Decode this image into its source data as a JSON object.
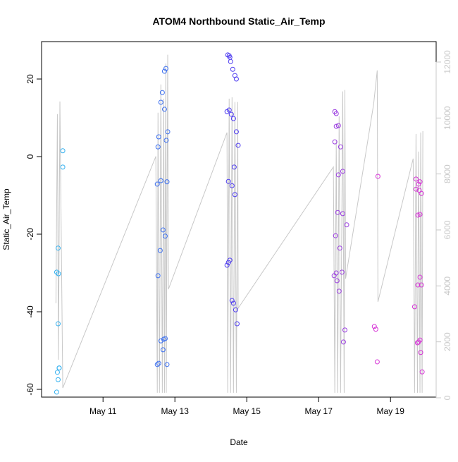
{
  "chart_data": {
    "type": "scatter",
    "title": "ATOM4 Northbound Static_Air_Temp",
    "xlabel": "Date",
    "ylabel": "Static_Air_Temp",
    "xlim": [
      9.29,
      20.27
    ],
    "ylim": [
      -62,
      29.64
    ],
    "y2lim": [
      25,
      12730
    ],
    "xticks": [
      {
        "value": 11,
        "label": "May 11"
      },
      {
        "value": 13,
        "label": "May 13"
      },
      {
        "value": 15,
        "label": "May 15"
      },
      {
        "value": 17,
        "label": "May 17"
      },
      {
        "value": 19,
        "label": "May 19"
      }
    ],
    "yticks": [
      -60,
      -40,
      -20,
      0,
      20
    ],
    "y2ticks": [
      0,
      2000,
      4000,
      6000,
      8000,
      10000,
      12000
    ],
    "series": [
      {
        "type": "line",
        "axis": "y2",
        "color": "#c8c8c8",
        "x": [
          9.69,
          9.73,
          9.76,
          9.8,
          9.88,
          12.47,
          12.51,
          12.53,
          12.57,
          12.61,
          12.65,
          12.69,
          12.71,
          12.75,
          12.76,
          12.8,
          12.82,
          14.45,
          14.47,
          14.51,
          14.55,
          14.59,
          14.63,
          14.67,
          14.71,
          14.75,
          14.76,
          17.41,
          17.45,
          17.49,
          17.53,
          17.57,
          17.61,
          17.67,
          17.71,
          17.73,
          17.75,
          18.53,
          18.63,
          18.65,
          19.63,
          19.67,
          19.71,
          19.75,
          19.78,
          19.82,
          19.84,
          19.88,
          19.9
        ],
        "values": [
          3380,
          10140,
          1360,
          10590,
          350,
          8630,
          180,
          10190,
          180,
          11200,
          180,
          10690,
          180,
          11950,
          180,
          12260,
          3880,
          9480,
          180,
          10690,
          180,
          10740,
          180,
          10570,
          180,
          10570,
          3200,
          8250,
          180,
          9180,
          180,
          10060,
          180,
          10950,
          180,
          11000,
          4260,
          10490,
          11700,
          3430,
          8550,
          180,
          9430,
          180,
          8800,
          180,
          9480,
          180,
          9530
        ]
      },
      {
        "color": "#33b0ef",
        "x": [
          9.71,
          9.75,
          9.78,
          9.73,
          9.78,
          9.75,
          9.71,
          9.76,
          9.75,
          9.88,
          9.88
        ],
        "values": [
          -60.7,
          -57.5,
          -54.5,
          -55.6,
          -54.5,
          -43.1,
          -29.8,
          -30.2,
          -23.6,
          -2.7,
          1.5
        ]
      },
      {
        "color": "#3b6ff0",
        "x": [
          12.51,
          12.55,
          12.61,
          12.69,
          12.67,
          12.73,
          12.78,
          12.53,
          12.59,
          12.67,
          12.73,
          12.51,
          12.61,
          12.78,
          12.53,
          12.55,
          12.8,
          12.76,
          12.61,
          12.65,
          12.71,
          12.71,
          12.75
        ],
        "values": [
          -53.6,
          -53.3,
          -47.5,
          -47.1,
          -49.8,
          -46.9,
          -53.6,
          -30.7,
          -24.2,
          -18.9,
          -20.5,
          -7.1,
          -6.2,
          -6.5,
          2.5,
          5.1,
          6.4,
          4.2,
          14.0,
          16.5,
          12.2,
          22.0,
          22.7
        ]
      },
      {
        "color": "#4e3cf0",
        "x": [
          14.47,
          14.51,
          14.53,
          14.55,
          14.61,
          14.67,
          14.71,
          14.45,
          14.51,
          14.57,
          14.63,
          14.71,
          14.76,
          14.49,
          14.59,
          14.67,
          14.65,
          14.45,
          14.49,
          14.53,
          14.59,
          14.63,
          14.69,
          14.73
        ],
        "values": [
          26.2,
          26.0,
          25.6,
          24.5,
          22.5,
          20.9,
          20.0,
          11.6,
          12.0,
          10.9,
          9.8,
          6.4,
          2.9,
          -6.4,
          -7.5,
          -9.8,
          -2.7,
          -28.0,
          -27.3,
          -26.7,
          -37.1,
          -37.8,
          -39.5,
          -43.1
        ]
      },
      {
        "color": "#9a3de0",
        "x": [
          17.45,
          17.49,
          17.49,
          17.55,
          17.45,
          17.61,
          17.55,
          17.67,
          17.53,
          17.67,
          17.47,
          17.59,
          17.78,
          17.43,
          17.49,
          17.65,
          17.51,
          17.57,
          17.73,
          17.69
        ],
        "values": [
          11.6,
          11.1,
          7.8,
          8.0,
          3.8,
          2.5,
          -4.7,
          -3.8,
          -14.4,
          -14.7,
          -20.4,
          -23.6,
          -17.6,
          -30.7,
          -30.0,
          -29.8,
          -32.0,
          -34.7,
          -44.7,
          -47.8
        ]
      },
      {
        "color": "#d633d6",
        "x": [
          18.55,
          18.59,
          18.63,
          18.65,
          19.71,
          19.78,
          19.82,
          19.71,
          19.8,
          19.86,
          19.76,
          19.82,
          19.67,
          19.76,
          19.86,
          19.82,
          19.78,
          19.75,
          19.82,
          19.84,
          19.88
        ],
        "values": [
          -43.8,
          -44.5,
          -52.9,
          -5.1,
          -5.8,
          -7.1,
          -6.5,
          -8.4,
          -8.7,
          -9.5,
          -15.1,
          -14.9,
          -38.7,
          -33.1,
          -33.1,
          -31.1,
          -47.8,
          -48.0,
          -47.3,
          -50.5,
          -55.5
        ]
      }
    ]
  }
}
